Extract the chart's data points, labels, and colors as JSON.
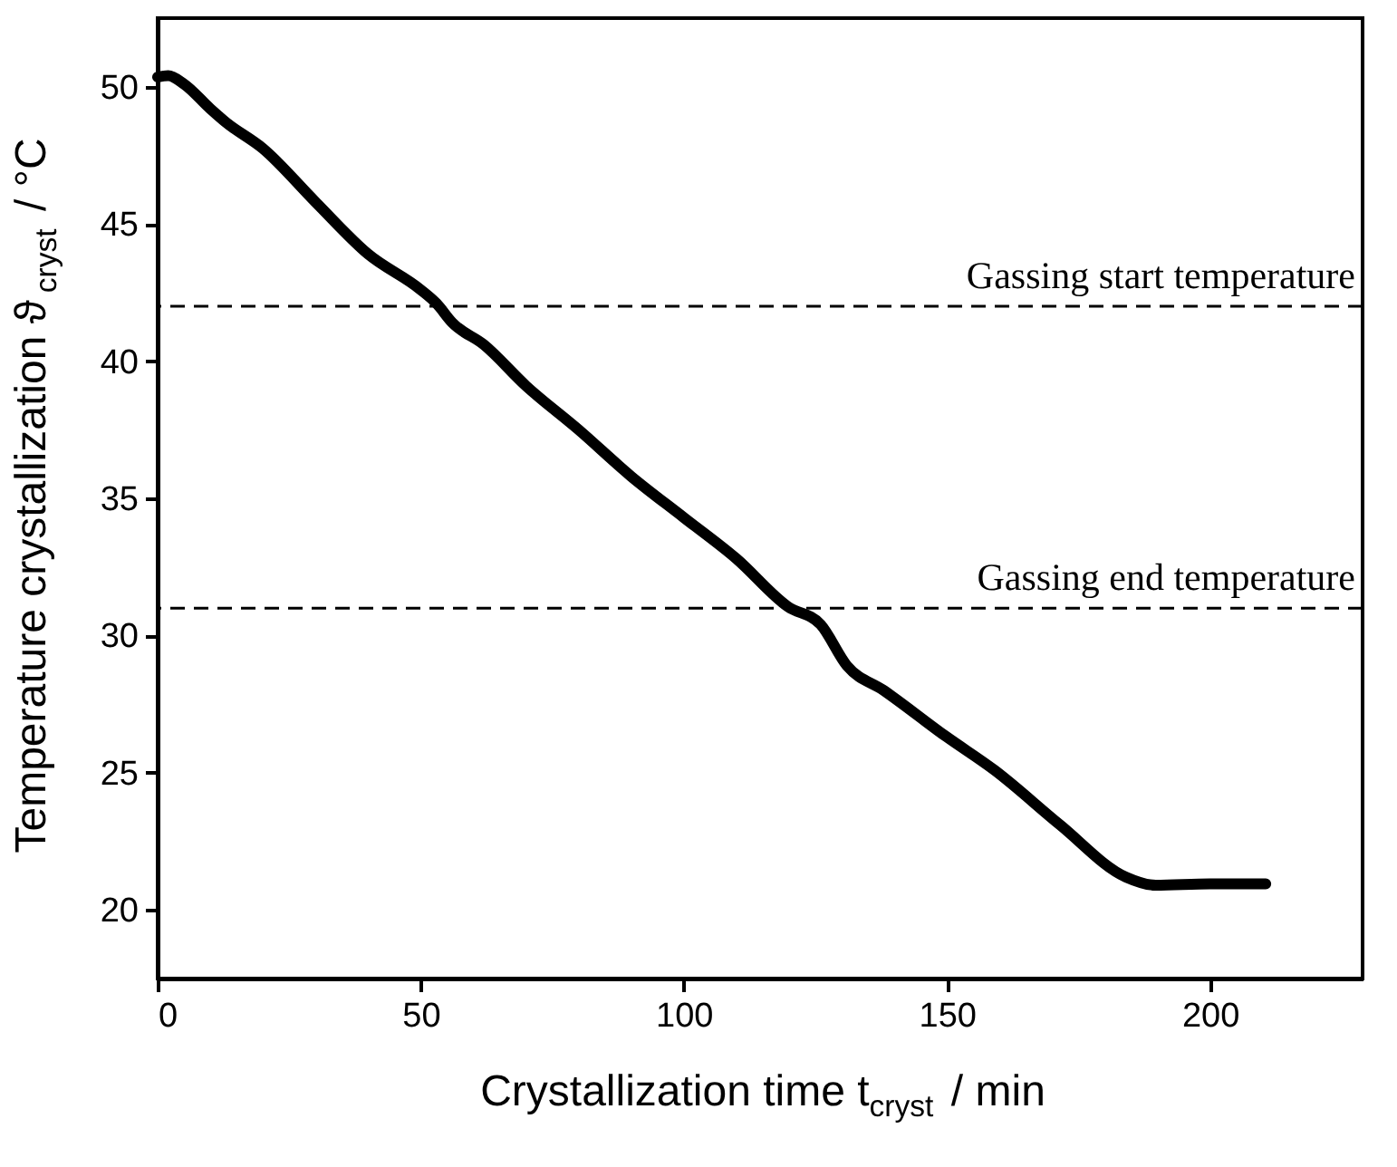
{
  "chart_data": {
    "type": "line",
    "xlabel": "Crystallization time t$_{cryst}$ / min",
    "ylabel": "Temperature crystallization ϑ$_{cryst}$ / °C",
    "x": [
      0,
      2,
      5,
      10,
      13,
      20,
      30,
      40,
      50,
      53,
      56,
      62,
      70,
      80,
      90,
      100,
      110,
      119.8,
      126,
      131,
      138,
      150,
      159,
      171.5,
      184,
      189.7,
      200,
      210.6
    ],
    "series": [
      {
        "color": "#000000",
        "values": [
          50.35,
          50.4,
          50.1,
          49.2,
          48.7,
          47.75,
          45.8,
          43.9,
          42.6,
          42.1,
          41.4,
          40.6,
          39.1,
          37.5,
          35.8,
          34.3,
          32.8,
          31.05,
          30.4,
          28.9,
          28.0,
          26.3,
          25.1,
          23.1,
          21.2,
          20.9,
          20.95,
          20.95
        ]
      }
    ],
    "xlim": [
      0,
      229
    ],
    "xticks": [
      0,
      50,
      100,
      150,
      200
    ],
    "ylim": [
      17.5,
      52.5
    ],
    "yticks": [
      20,
      25,
      30,
      35,
      40,
      45,
      50
    ],
    "ref_lines": [
      {
        "axis": "y",
        "value": 42,
        "label": "Gassing start temperature",
        "color": "#000000",
        "line_style": "dashed"
      },
      {
        "axis": "y",
        "value": 31,
        "label": "Gassing end temperature",
        "color": "#000000",
        "line_style": "dashed"
      }
    ],
    "grid": false,
    "marker": "none",
    "line_style": "solid"
  }
}
